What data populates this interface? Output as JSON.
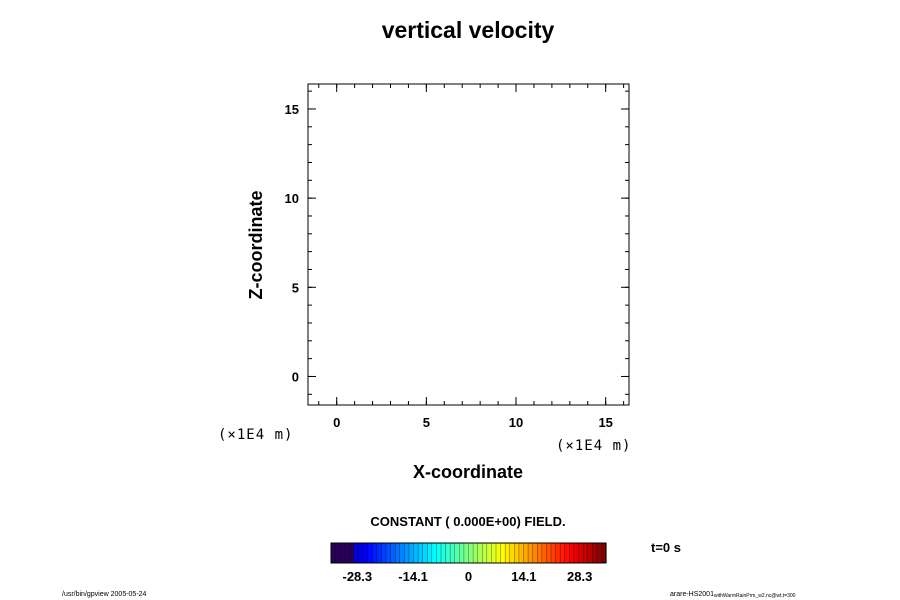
{
  "chart_data": {
    "type": "heatmap",
    "title": "vertical velocity",
    "xlabel": "X-coordinate",
    "ylabel": "Z-coordinate",
    "x_unit": "(×1E4 m)",
    "y_unit": "(×1E4 m)",
    "xlim": [
      -1.6,
      16.3
    ],
    "ylim": [
      -1.6,
      16.4
    ],
    "x_ticks": [
      "0",
      "5",
      "10",
      "15"
    ],
    "x_tick_values": [
      0,
      5,
      10,
      15
    ],
    "y_ticks": [
      "0",
      "5",
      "10",
      "15"
    ],
    "y_tick_values": [
      0,
      5,
      10,
      15
    ],
    "message": "CONSTANT ( 0.000E+00) FIELD.",
    "colorbar": {
      "range": [
        -35,
        35
      ],
      "tick_labels": [
        "-28.3",
        "-14.1",
        "0",
        "14.1",
        "28.3"
      ],
      "tick_values": [
        -28.3,
        -14.1,
        0,
        14.1,
        28.3
      ],
      "bins": 60,
      "colormap": "jet"
    },
    "time_label": "t=0 s"
  },
  "footer": {
    "left": "/usr/bin/gpview 2005-05-24",
    "right_main": "arare-HS2001",
    "right_sub": "withWarmRainPrm_w2.nc@wt,t=300"
  }
}
